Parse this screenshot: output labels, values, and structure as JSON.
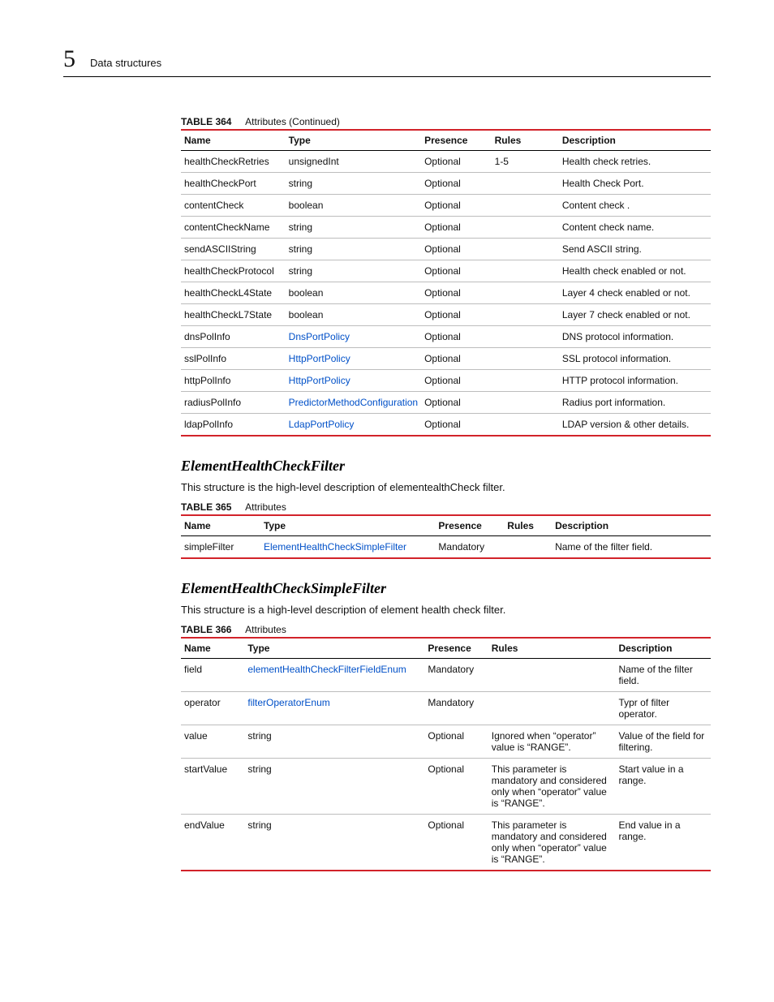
{
  "header": {
    "chapter_number": "5",
    "chapter_title": "Data structures"
  },
  "table364": {
    "caption_label": "TABLE 364",
    "caption_text": "Attributes  (Continued)",
    "columns": [
      "Name",
      "Type",
      "Presence",
      "Rules",
      "Description"
    ],
    "rows": [
      {
        "name": "healthCheckRetries",
        "type": "unsignedInt",
        "type_link": false,
        "presence": "Optional",
        "rules": "1-5",
        "desc": "Health check retries."
      },
      {
        "name": "healthCheckPort",
        "type": "string",
        "type_link": false,
        "presence": "Optional",
        "rules": "",
        "desc": "Health Check Port."
      },
      {
        "name": "contentCheck",
        "type": "boolean",
        "type_link": false,
        "presence": "Optional",
        "rules": "",
        "desc": "Content check ."
      },
      {
        "name": "contentCheckName",
        "type": "string",
        "type_link": false,
        "presence": "Optional",
        "rules": "",
        "desc": "Content check name."
      },
      {
        "name": "sendASCIIString",
        "type": "string",
        "type_link": false,
        "presence": "Optional",
        "rules": "",
        "desc": "Send ASCII string."
      },
      {
        "name": "healthCheckProtocol",
        "type": "string",
        "type_link": false,
        "presence": "Optional",
        "rules": "",
        "desc": "Health check enabled or not."
      },
      {
        "name": "healthCheckL4State",
        "type": "boolean",
        "type_link": false,
        "presence": "Optional",
        "rules": "",
        "desc": "Layer 4 check enabled or not."
      },
      {
        "name": "healthCheckL7State",
        "type": "boolean",
        "type_link": false,
        "presence": "Optional",
        "rules": "",
        "desc": "Layer 7 check enabled or not."
      },
      {
        "name": "dnsPolInfo",
        "type": "DnsPortPolicy",
        "type_link": true,
        "presence": "Optional",
        "rules": "",
        "desc": "DNS protocol information."
      },
      {
        "name": "sslPolInfo",
        "type": "HttpPortPolicy",
        "type_link": true,
        "presence": "Optional",
        "rules": "",
        "desc": "SSL protocol information."
      },
      {
        "name": "httpPolInfo",
        "type": "HttpPortPolicy",
        "type_link": true,
        "presence": "Optional",
        "rules": "",
        "desc": "HTTP protocol information."
      },
      {
        "name": "radiusPolInfo",
        "type": "PredictorMethodConfiguration",
        "type_link": true,
        "presence": "Optional",
        "rules": "",
        "desc": "Radius port information."
      },
      {
        "name": "ldapPolInfo",
        "type": "LdapPortPolicy",
        "type_link": true,
        "presence": "Optional",
        "rules": "",
        "desc": "LDAP version & other details."
      }
    ]
  },
  "section1": {
    "heading": "ElementHealthCheckFilter",
    "blurb": "This structure is the high-level description of elementealthCheck filter."
  },
  "table365": {
    "caption_label": "TABLE 365",
    "caption_text": "Attributes",
    "columns": [
      "Name",
      "Type",
      "Presence",
      "Rules",
      "Description"
    ],
    "rows": [
      {
        "name": "simpleFilter",
        "type": "ElementHealthCheckSimpleFilter",
        "type_link": true,
        "presence": "Mandatory",
        "rules": "",
        "desc": "Name of the filter field."
      }
    ]
  },
  "section2": {
    "heading": "ElementHealthCheckSimpleFilter",
    "blurb": "This structure is a high-level description of element health check filter."
  },
  "table366": {
    "caption_label": "TABLE 366",
    "caption_text": "Attributes",
    "columns": [
      "Name",
      "Type",
      "Presence",
      "Rules",
      "Description"
    ],
    "rows": [
      {
        "name": "field",
        "type": "elementHealthCheckFilterFieldEnum",
        "type_link": true,
        "presence": "Mandatory",
        "rules": "",
        "desc": "Name of the filter field."
      },
      {
        "name": "operator",
        "type": "filterOperatorEnum",
        "type_link": true,
        "presence": "Mandatory",
        "rules": "",
        "desc": "Typr of filter operator."
      },
      {
        "name": "value",
        "type": "string",
        "type_link": false,
        "presence": "Optional",
        "rules": "Ignored when “operator” value is “RANGE”.",
        "desc": "Value of the field for filtering."
      },
      {
        "name": "startValue",
        "type": "string",
        "type_link": false,
        "presence": "Optional",
        "rules": "This parameter is mandatory and considered only when “operator” value is “RANGE”.",
        "desc": "Start value in a range."
      },
      {
        "name": "endValue",
        "type": "string",
        "type_link": false,
        "presence": "Optional",
        "rules": "This parameter is mandatory and considered only when “operator” value is “RANGE”.",
        "desc": "End value in a range."
      }
    ]
  }
}
